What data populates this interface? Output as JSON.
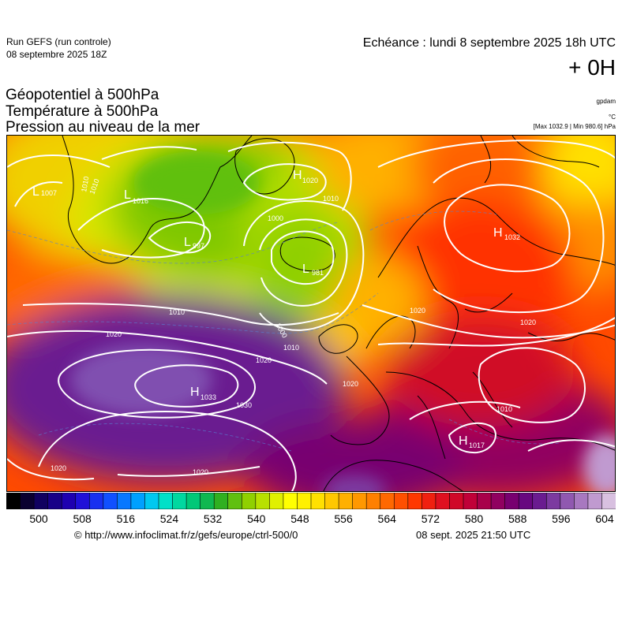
{
  "header": {
    "run_label": "Run GEFS (run controle)",
    "run_date": "08 septembre 2025 18Z",
    "echeance": "Echéance : lundi 8 septembre 2025 18h UTC",
    "lead": "+ 0H",
    "variables": [
      "Géopotentiel à 500hPa",
      "Température à 500hPa",
      "Pression au niveau de la mer"
    ],
    "units": [
      "gpdam",
      "°C"
    ],
    "maxmin": "[Max 1032.9 | Min 980.6] hPa"
  },
  "map": {
    "pressure_centers": [
      {
        "type": "L",
        "value": "1007"
      },
      {
        "type": "L",
        "value": "1016"
      },
      {
        "type": "L",
        "value": "997"
      },
      {
        "type": "H",
        "value": "1020"
      },
      {
        "type": "L",
        "value": "981"
      },
      {
        "type": "H",
        "value": "1032"
      },
      {
        "type": "H",
        "value": "1033"
      },
      {
        "type": "H",
        "value": "1017"
      }
    ],
    "isobar_labels": [
      "1010",
      "1010",
      "1010",
      "1000",
      "1010",
      "1020",
      "1020",
      "1020",
      "1010",
      "1020",
      "1030",
      "1020",
      "1020",
      "1020",
      "1010",
      "1000"
    ]
  },
  "colorbar": {
    "ticks": [
      "500",
      "508",
      "516",
      "524",
      "532",
      "540",
      "548",
      "556",
      "564",
      "572",
      "580",
      "588",
      "596",
      "604"
    ],
    "colors": [
      "#000000",
      "#0a0030",
      "#100060",
      "#180088",
      "#1e00b0",
      "#2010d8",
      "#1830f0",
      "#1050ff",
      "#0878ff",
      "#00a0ff",
      "#00c8f0",
      "#00e0c8",
      "#00d8a0",
      "#00c878",
      "#10b850",
      "#30b020",
      "#60c010",
      "#90d000",
      "#b8e000",
      "#e0f000",
      "#ffff00",
      "#fff000",
      "#ffe000",
      "#ffc800",
      "#ffb000",
      "#ff9800",
      "#ff8000",
      "#ff6800",
      "#ff5000",
      "#ff3800",
      "#f02010",
      "#e01020",
      "#d00828",
      "#c00038",
      "#a8004a",
      "#900060",
      "#780070",
      "#680880",
      "#6a1c90",
      "#7c3aa0",
      "#9058b0",
      "#a878c0",
      "#c09ad0",
      "#d8c0e0"
    ]
  },
  "footer": {
    "credit": "© http://www.infoclimat.fr/z/gefs/europe/ctrl-500/0",
    "timestamp": "08 sept. 2025 21:50 UTC"
  }
}
